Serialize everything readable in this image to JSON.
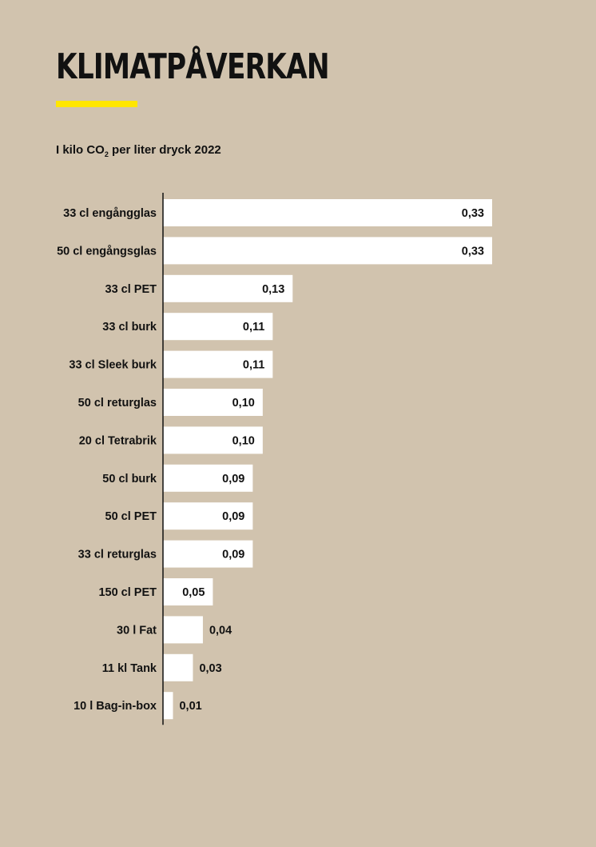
{
  "chart_data": {
    "type": "bar",
    "orientation": "horizontal",
    "title": "KLIMATPÅVERKAN",
    "subtitle": {
      "before": "I kilo CO",
      "sub": "2",
      "after": " per liter dryck 2022"
    },
    "categories": [
      "33 cl engångglas",
      "50 cl engångsglas",
      "33 cl PET",
      "33 cl burk",
      "33 cl Sleek burk",
      "50 cl returglas",
      "20 cl Tetrabrik",
      "50 cl burk",
      "50 cl PET",
      "33 cl returglas",
      "150 cl PET",
      "30 l Fat",
      "11 kl Tank",
      "10 l Bag-in-box"
    ],
    "values": [
      0.33,
      0.33,
      0.13,
      0.11,
      0.11,
      0.1,
      0.1,
      0.09,
      0.09,
      0.09,
      0.05,
      0.04,
      0.03,
      0.01
    ],
    "labels": [
      "0,33",
      "0,33",
      "0,13",
      "0,11",
      "0,11",
      "0,10",
      "0,10",
      "0,09",
      "0,09",
      "0,09",
      "0,05",
      "0,04",
      "0,03",
      "0,01"
    ],
    "xlim": [
      0,
      0.33
    ],
    "grid": false,
    "colors": {
      "background": "#d1c3ae",
      "bar": "#ffffff",
      "accent": "#ffe600",
      "text": "#111111"
    }
  }
}
